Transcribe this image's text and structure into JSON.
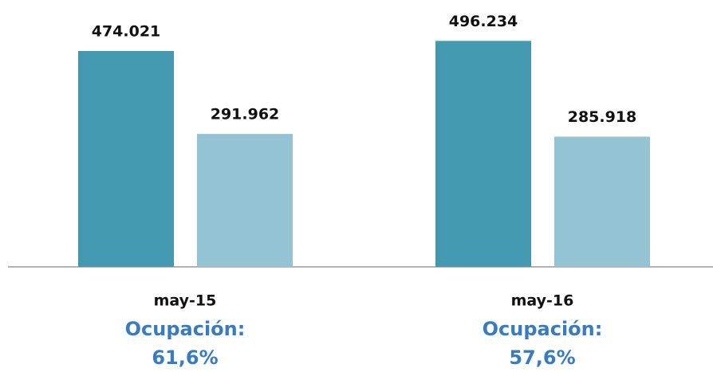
{
  "chart_data": {
    "type": "bar",
    "categories": [
      "may-15",
      "may-16"
    ],
    "series": [
      {
        "color": "#4299b0",
        "values": [
          474021,
          496234
        ],
        "value_labels": [
          "474.021",
          "496.234"
        ]
      },
      {
        "color": "#94c4d4",
        "values": [
          291962,
          285918
        ],
        "value_labels": [
          "291.962",
          "285.918"
        ]
      }
    ],
    "ylim": [
      0,
      586000
    ],
    "annotations": [
      {
        "title": "Ocupación:",
        "text": "61,6%"
      },
      {
        "title": "Ocupación:",
        "text": "57,6%"
      }
    ]
  }
}
